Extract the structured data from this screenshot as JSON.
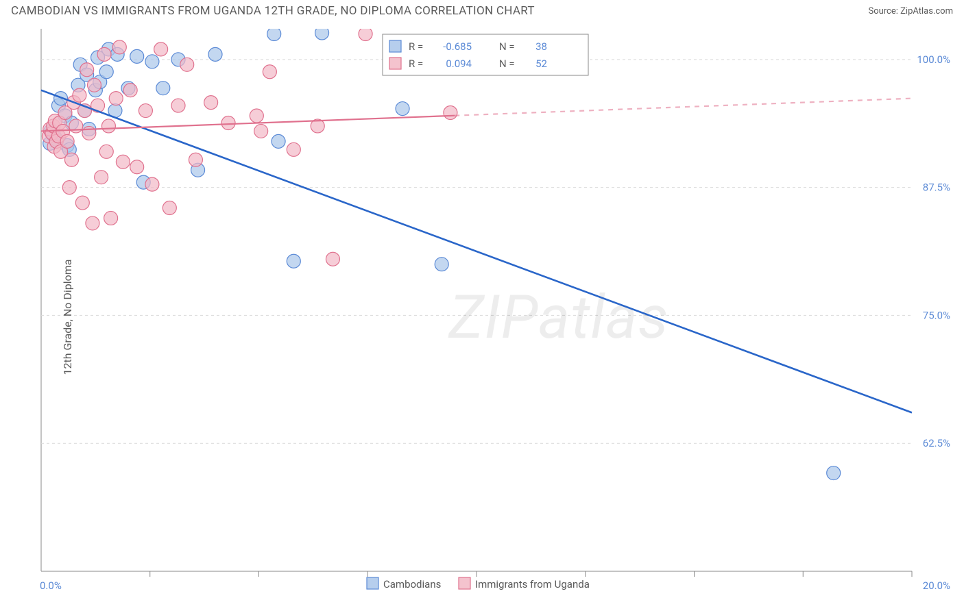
{
  "header": {
    "title": "CAMBODIAN VS IMMIGRANTS FROM UGANDA 12TH GRADE, NO DIPLOMA CORRELATION CHART",
    "source": "Source: ZipAtlas.com"
  },
  "watermark": "ZIPatlas",
  "chart": {
    "type": "scatter",
    "background_color": "#ffffff",
    "plot_border_color": "#888888",
    "grid_color": "#d9d9d9",
    "tick_color": "#888888",
    "ytick_label_color": "#5b8ad6",
    "xlim": [
      0,
      20
    ],
    "ylim": [
      50,
      103
    ],
    "xticks_minor": [
      2.5,
      5,
      7.5,
      10,
      12.5,
      15,
      17.5,
      20
    ],
    "yticks": [
      62.5,
      75,
      87.5,
      100
    ],
    "ytick_labels": [
      "62.5%",
      "75.0%",
      "87.5%",
      "100.0%"
    ],
    "xlim_labels": {
      "left": "0.0%",
      "right": "20.0%"
    },
    "ylabel": "12th Grade, No Diploma",
    "ylabel_color": "#5a5a5a",
    "series": [
      {
        "name": "Cambodians",
        "marker_fill": "#a9c6ea",
        "marker_stroke": "#5b8ad6",
        "marker_opacity": 0.7,
        "marker_r": 10,
        "R": "-0.685",
        "N": "38",
        "regression": {
          "x0": 0,
          "y0": 97.0,
          "x1": 20,
          "y1": 65.5,
          "stroke": "#2a66c9",
          "width": 2.6,
          "dash_after_x": null
        },
        "points": [
          [
            0.2,
            91.8
          ],
          [
            0.22,
            93.0
          ],
          [
            0.25,
            92.8
          ],
          [
            0.3,
            92.5
          ],
          [
            0.35,
            92.2
          ],
          [
            0.4,
            95.5
          ],
          [
            0.45,
            96.2
          ],
          [
            0.55,
            94.5
          ],
          [
            0.6,
            91.6
          ],
          [
            0.65,
            91.2
          ],
          [
            0.7,
            93.8
          ],
          [
            0.85,
            97.5
          ],
          [
            0.9,
            99.5
          ],
          [
            1.0,
            95.0
          ],
          [
            1.05,
            98.5
          ],
          [
            1.1,
            93.2
          ],
          [
            1.25,
            97.0
          ],
          [
            1.3,
            100.2
          ],
          [
            1.35,
            97.8
          ],
          [
            1.5,
            98.8
          ],
          [
            1.55,
            101.0
          ],
          [
            1.7,
            95.0
          ],
          [
            1.75,
            100.5
          ],
          [
            2.0,
            97.2
          ],
          [
            2.2,
            100.3
          ],
          [
            2.35,
            88.0
          ],
          [
            2.55,
            99.8
          ],
          [
            2.8,
            97.2
          ],
          [
            3.15,
            100.0
          ],
          [
            3.6,
            89.2
          ],
          [
            4.0,
            100.5
          ],
          [
            5.35,
            102.5
          ],
          [
            5.45,
            92.0
          ],
          [
            5.8,
            80.3
          ],
          [
            6.45,
            102.6
          ],
          [
            8.3,
            95.2
          ],
          [
            9.2,
            80.0
          ],
          [
            18.2,
            59.6
          ]
        ]
      },
      {
        "name": "Immigrants from Uganda",
        "marker_fill": "#f2b8c6",
        "marker_stroke": "#e0718e",
        "marker_opacity": 0.7,
        "marker_r": 10,
        "R": "0.094",
        "N": "52",
        "regression": {
          "x0": 0,
          "y0": 93.0,
          "x1": 20,
          "y1": 96.2,
          "stroke": "#e0718e",
          "width": 2.2,
          "dash_after_x": 9.5
        },
        "points": [
          [
            0.18,
            92.5
          ],
          [
            0.2,
            93.2
          ],
          [
            0.25,
            92.8
          ],
          [
            0.28,
            93.5
          ],
          [
            0.3,
            91.5
          ],
          [
            0.32,
            94.0
          ],
          [
            0.35,
            92.0
          ],
          [
            0.4,
            92.5
          ],
          [
            0.42,
            93.8
          ],
          [
            0.45,
            91.0
          ],
          [
            0.5,
            93.0
          ],
          [
            0.55,
            94.8
          ],
          [
            0.6,
            92.0
          ],
          [
            0.65,
            87.5
          ],
          [
            0.7,
            90.2
          ],
          [
            0.75,
            95.8
          ],
          [
            0.8,
            93.5
          ],
          [
            0.88,
            96.5
          ],
          [
            0.95,
            86.0
          ],
          [
            1.0,
            95.0
          ],
          [
            1.05,
            99.0
          ],
          [
            1.1,
            92.8
          ],
          [
            1.18,
            84.0
          ],
          [
            1.22,
            97.5
          ],
          [
            1.3,
            95.5
          ],
          [
            1.38,
            88.5
          ],
          [
            1.45,
            100.5
          ],
          [
            1.5,
            91.0
          ],
          [
            1.55,
            93.5
          ],
          [
            1.6,
            84.5
          ],
          [
            1.72,
            96.2
          ],
          [
            1.8,
            101.2
          ],
          [
            1.88,
            90.0
          ],
          [
            2.05,
            97.0
          ],
          [
            2.2,
            89.5
          ],
          [
            2.4,
            95.0
          ],
          [
            2.55,
            87.8
          ],
          [
            2.75,
            101.0
          ],
          [
            2.95,
            85.5
          ],
          [
            3.15,
            95.5
          ],
          [
            3.35,
            99.5
          ],
          [
            3.55,
            90.2
          ],
          [
            3.9,
            95.8
          ],
          [
            4.3,
            93.8
          ],
          [
            4.95,
            94.5
          ],
          [
            5.05,
            93.0
          ],
          [
            5.25,
            98.8
          ],
          [
            5.8,
            91.2
          ],
          [
            6.35,
            93.5
          ],
          [
            6.7,
            80.5
          ],
          [
            7.45,
            102.5
          ],
          [
            9.4,
            94.8
          ]
        ]
      }
    ],
    "legend_box": {
      "border_color": "#888888",
      "bg": "#ffffff",
      "label_color": "#5a5a5a",
      "value_color": "#5b8ad6",
      "R_label": "R =",
      "N_label": "N ="
    },
    "bottom_legend": {
      "label_color": "#5a5a5a"
    }
  }
}
